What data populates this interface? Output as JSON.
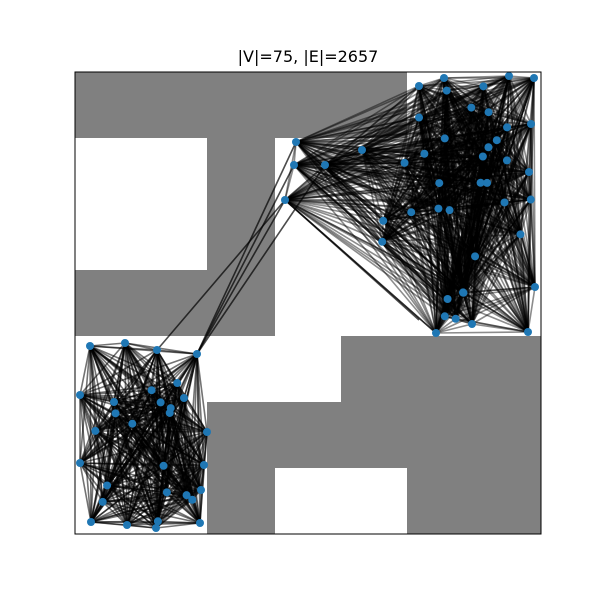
{
  "title": "|V|=75, |E|=2657",
  "colors": {
    "background": "#ffffff",
    "obstacle": "#808080",
    "edge": "#000000",
    "node": "#1f77b4",
    "frame": "#000000"
  },
  "graph": {
    "vertex_count": 75,
    "edge_count": 2657
  }
}
